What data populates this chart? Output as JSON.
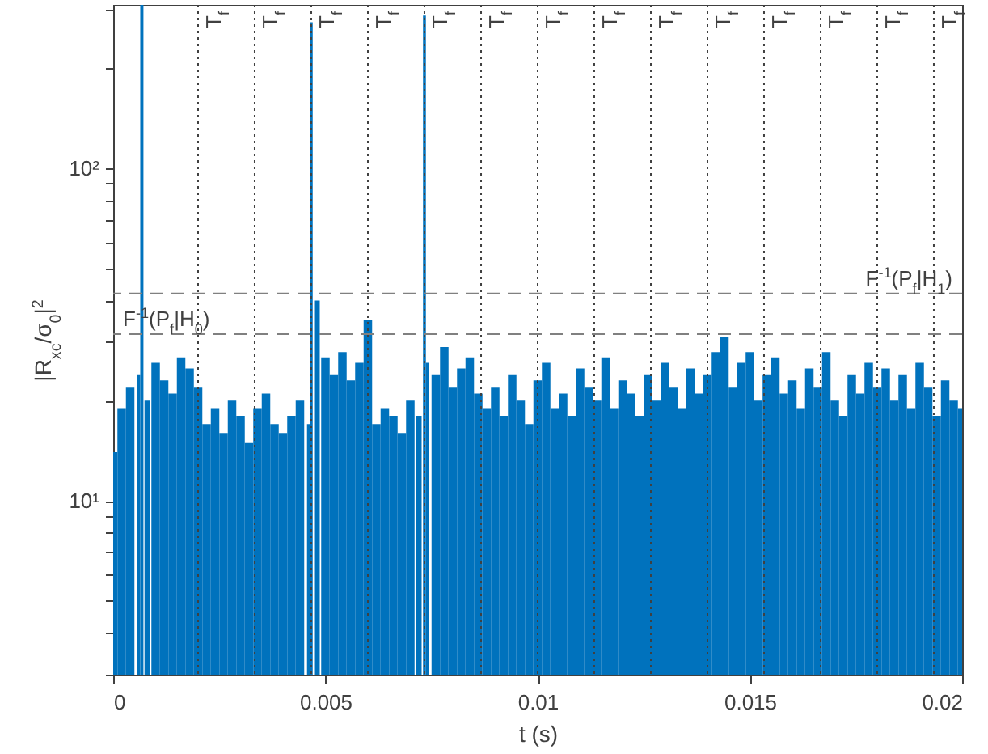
{
  "chart_data": {
    "type": "bar",
    "xlabel": "t (s)",
    "ylabel": "|R$_{xc}$/σ$_{0}$|$^{2}$",
    "x": [
      0,
      0.0002,
      0.0004,
      0.0006,
      0.000675,
      0.0008,
      0.001,
      0.0012,
      0.0014,
      0.0016,
      0.0018,
      0.002,
      0.0022,
      0.0024,
      0.0026,
      0.0028,
      0.003,
      0.0032,
      0.0034,
      0.0036,
      0.0038,
      0.004,
      0.0042,
      0.0044,
      0.0046,
      0.004667,
      0.0048,
      0.005,
      0.0052,
      0.0054,
      0.0056,
      0.0058,
      0.006,
      0.0062,
      0.0064,
      0.0066,
      0.0068,
      0.007,
      0.0072,
      0.007333,
      0.0074,
      0.0076,
      0.0078,
      0.008,
      0.0082,
      0.0084,
      0.0086,
      0.0088,
      0.009,
      0.0092,
      0.0094,
      0.0096,
      0.0098,
      0.01,
      0.0102,
      0.0104,
      0.0106,
      0.0108,
      0.011,
      0.0112,
      0.0114,
      0.0116,
      0.0118,
      0.012,
      0.0122,
      0.0124,
      0.0126,
      0.0128,
      0.013,
      0.0132,
      0.0134,
      0.0136,
      0.0138,
      0.014,
      0.0142,
      0.0144,
      0.0146,
      0.0148,
      0.015,
      0.0152,
      0.0154,
      0.0156,
      0.0158,
      0.016,
      0.0162,
      0.0164,
      0.0166,
      0.0168,
      0.017,
      0.0172,
      0.0174,
      0.0176,
      0.0178,
      0.018,
      0.0182,
      0.0184,
      0.0186,
      0.0188,
      0.019,
      0.0192,
      0.0194,
      0.0196,
      0.0198,
      0.02
    ],
    "series": [
      {
        "color": "#0072bd",
        "values": [
          14,
          19,
          22,
          24,
          310,
          20,
          26,
          23,
          21,
          27,
          25,
          22,
          17,
          19,
          16,
          20,
          18,
          15,
          19,
          21,
          17,
          16,
          18,
          20,
          17,
          275,
          40,
          27,
          24,
          28,
          23,
          26,
          35,
          17,
          19,
          18,
          16,
          20,
          18,
          288,
          26,
          24,
          29,
          22,
          25,
          27,
          21,
          19,
          22,
          18,
          24,
          20,
          17,
          23,
          26,
          19,
          21,
          18,
          25,
          22,
          20,
          27,
          19,
          23,
          21,
          18,
          24,
          20,
          26,
          22,
          19,
          25,
          21,
          24,
          28,
          31,
          22,
          26,
          28,
          20,
          24,
          27,
          21,
          23,
          19,
          25,
          22,
          28,
          20,
          18,
          24,
          21,
          26,
          22,
          25,
          20,
          24,
          19,
          26,
          22,
          18,
          23,
          20,
          19
        ]
      }
    ],
    "xlim": [
      0,
      0.02
    ],
    "xticks": [
      0,
      0.005,
      0.01,
      0.015,
      0.02
    ],
    "ylim": [
      3,
      310
    ],
    "log": true,
    "yticks": [
      {
        "value": 3,
        "label": null
      },
      {
        "value": 4,
        "label": null
      },
      {
        "value": 5,
        "label": null
      },
      {
        "value": 6,
        "label": null
      },
      {
        "value": 7,
        "label": null
      },
      {
        "value": 8,
        "label": null
      },
      {
        "value": 9,
        "label": null
      },
      {
        "value": 10,
        "label": "10¹"
      },
      {
        "value": 20,
        "label": null
      },
      {
        "value": 30,
        "label": null
      },
      {
        "value": 40,
        "label": null
      },
      {
        "value": 50,
        "label": null
      },
      {
        "value": 60,
        "label": null
      },
      {
        "value": 70,
        "label": null
      },
      {
        "value": 80,
        "label": null
      },
      {
        "value": 90,
        "label": null
      },
      {
        "value": 100,
        "label": "10²"
      },
      {
        "value": 200,
        "label": null
      },
      {
        "value": 300,
        "label": null
      }
    ],
    "ref_lines": [
      {
        "axis": "y",
        "value": 31.7,
        "label": "F$^{-1}$(P$_{f}$|H$_{0}$)",
        "color": "#808080",
        "line_style": "dashed"
      },
      {
        "axis": "y",
        "value": 42,
        "label": "F$^{-1}$(P$_{f}$|H$_{1}$)",
        "color": "#808080",
        "line_style": "dashed"
      },
      {
        "axis": "x",
        "value": 0.002,
        "label": "T$_{f}$",
        "color": "#404040",
        "line_style": "dotted"
      },
      {
        "axis": "x",
        "value": 0.003333,
        "label": "T$_{f}$",
        "color": "#404040",
        "line_style": "dotted"
      },
      {
        "axis": "x",
        "value": 0.004667,
        "label": "T$_{f}$",
        "color": "#404040",
        "line_style": "dotted"
      },
      {
        "axis": "x",
        "value": 0.006,
        "label": "T$_{f}$",
        "color": "#404040",
        "line_style": "dotted"
      },
      {
        "axis": "x",
        "value": 0.007333,
        "label": "T$_{f}$",
        "color": "#404040",
        "line_style": "dotted"
      },
      {
        "axis": "x",
        "value": 0.008667,
        "label": "T$_{f}$",
        "color": "#404040",
        "line_style": "dotted"
      },
      {
        "axis": "x",
        "value": 0.01,
        "label": "T$_{f}$",
        "color": "#404040",
        "line_style": "dotted"
      },
      {
        "axis": "x",
        "value": 0.011333,
        "label": "T$_{f}$",
        "color": "#404040",
        "line_style": "dotted"
      },
      {
        "axis": "x",
        "value": 0.012667,
        "label": "T$_{f}$",
        "color": "#404040",
        "line_style": "dotted"
      },
      {
        "axis": "x",
        "value": 0.014,
        "label": "T$_{f}$",
        "color": "#404040",
        "line_style": "dotted"
      },
      {
        "axis": "x",
        "value": 0.015333,
        "label": "T$_{f}$",
        "color": "#404040",
        "line_style": "dotted"
      },
      {
        "axis": "x",
        "value": 0.016667,
        "label": "T$_{f}$",
        "color": "#404040",
        "line_style": "dotted"
      },
      {
        "axis": "x",
        "value": 0.018,
        "label": "T$_{f}$",
        "color": "#404040",
        "line_style": "dotted"
      },
      {
        "axis": "x",
        "value": 0.019333,
        "label": "T$_{f}$",
        "color": "#404040",
        "line_style": "dotted"
      }
    ]
  }
}
